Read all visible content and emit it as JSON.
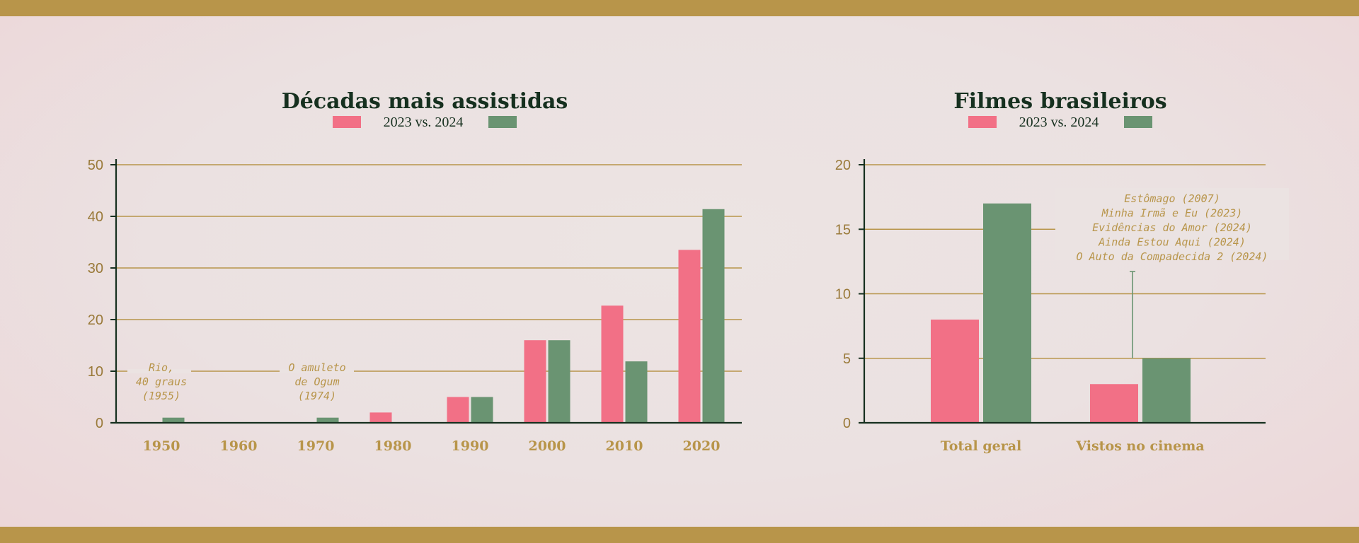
{
  "colors": {
    "band": "#b8954a",
    "series_2023": "#f27086",
    "series_2024": "#6a9472",
    "title": "#16301f",
    "gold": "#b8954a"
  },
  "legend_text": "2023 vs. 2024",
  "chart_data": [
    {
      "type": "bar",
      "title": "Décadas mais assistidas",
      "legend": "2023 vs. 2024",
      "categories": [
        "1950",
        "1960",
        "1970",
        "1980",
        "1990",
        "2000",
        "2010",
        "2020"
      ],
      "series": [
        {
          "values": [
            0,
            0,
            0,
            2,
            5,
            16,
            22.7,
            33.5
          ]
        },
        {
          "values": [
            1,
            0,
            1,
            0,
            5,
            16,
            11.9,
            41.4
          ]
        }
      ],
      "ylim": [
        0,
        50
      ],
      "yticks": [
        "0",
        "10",
        "20",
        "30",
        "40",
        "50"
      ],
      "grid": true,
      "annotations": [
        {
          "category": "1950",
          "lines": [
            "Rio,",
            "40 graus",
            "(1955)"
          ]
        },
        {
          "category": "1970",
          "lines": [
            "O amuleto",
            "de Ogum",
            "(1974)"
          ]
        }
      ]
    },
    {
      "type": "bar",
      "title": "Filmes brasileiros",
      "legend": "2023 vs. 2024",
      "categories": [
        "Total geral",
        "Vistos no cinema"
      ],
      "series": [
        {
          "values": [
            8,
            3
          ]
        },
        {
          "values": [
            17,
            5
          ]
        }
      ],
      "ylim": [
        0,
        20
      ],
      "yticks": [
        "0",
        "5",
        "10",
        "15",
        "20"
      ],
      "grid": true,
      "annotations": [
        {
          "category": "Vistos no cinema",
          "lines": [
            "Estômago (2007)",
            "Minha Irmã e Eu (2023)",
            "Evidências do Amor (2024)",
            "Ainda Estou Aqui (2024)",
            "O Auto da Compadecida 2 (2024)"
          ]
        }
      ]
    }
  ]
}
